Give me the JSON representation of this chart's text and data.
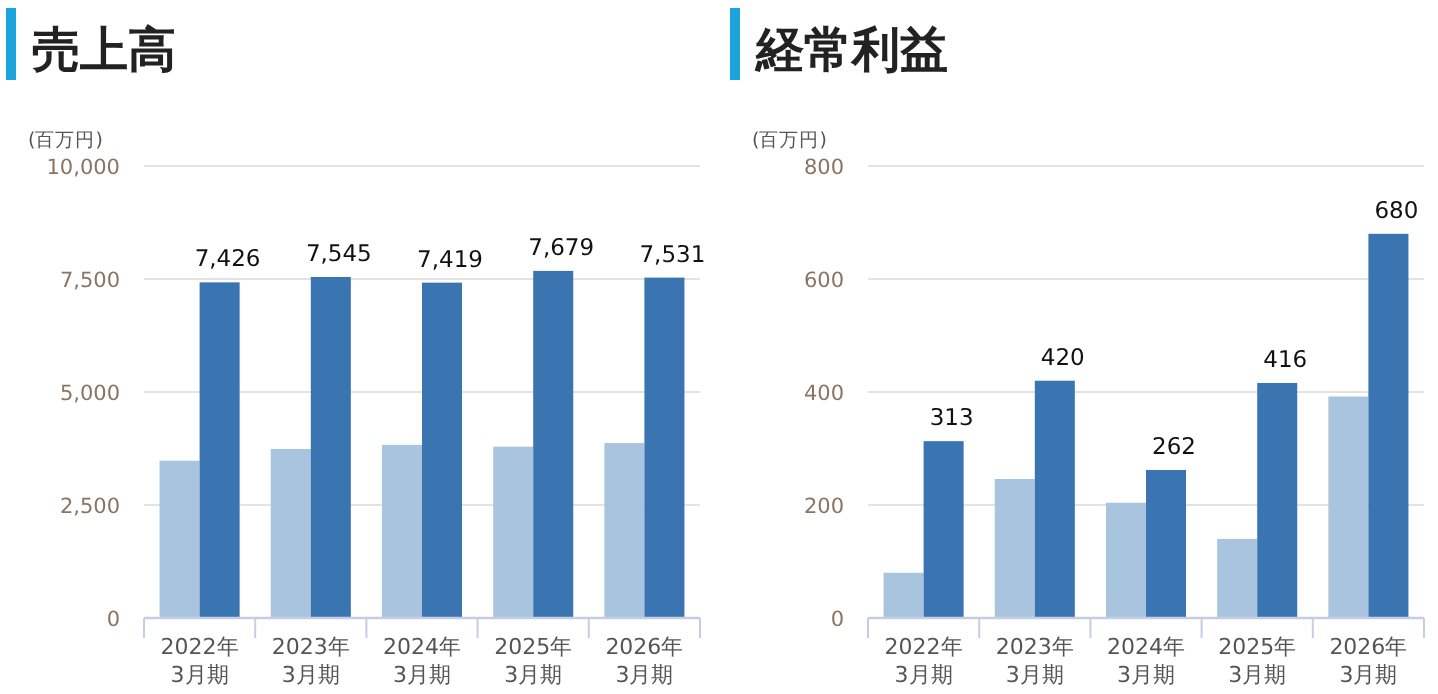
{
  "chart_data": [
    {
      "type": "bar",
      "title": "売上高",
      "ylabel": "(百万円)",
      "categories": [
        "2022年\n3月期",
        "2023年\n3月期",
        "2024年\n3月期",
        "2025年\n3月期",
        "2026年\n3月期"
      ],
      "series": [
        {
          "color": "#a9c4df",
          "values": [
            3480,
            3740,
            3830,
            3790,
            3870
          ]
        },
        {
          "color": "#3a75b1",
          "values": [
            7426,
            7545,
            7419,
            7679,
            7531
          ],
          "value_labels": [
            "7,426",
            "7,545",
            "7,419",
            "7,679",
            "7,531"
          ]
        }
      ],
      "ylim": [
        0,
        10000
      ],
      "yticks": [
        {
          "value": 0,
          "label": "0"
        },
        {
          "value": 2500,
          "label": "2,500"
        },
        {
          "value": 5000,
          "label": "5,000"
        },
        {
          "value": 7500,
          "label": "7,500"
        },
        {
          "value": 10000,
          "label": "10,000"
        }
      ],
      "grid": "y"
    },
    {
      "type": "bar",
      "title": "経常利益",
      "ylabel": "(百万円)",
      "categories": [
        "2022年\n3月期",
        "2023年\n3月期",
        "2024年\n3月期",
        "2025年\n3月期",
        "2026年\n3月期"
      ],
      "series": [
        {
          "color": "#a9c4df",
          "values": [
            80,
            246,
            204,
            140,
            392
          ]
        },
        {
          "color": "#3a75b1",
          "values": [
            313,
            420,
            262,
            416,
            680
          ],
          "value_labels": [
            "313",
            "420",
            "262",
            "416",
            "680"
          ]
        }
      ],
      "ylim": [
        0,
        800
      ],
      "yticks": [
        0,
        200,
        400,
        600,
        800
      ],
      "grid": "y"
    }
  ]
}
